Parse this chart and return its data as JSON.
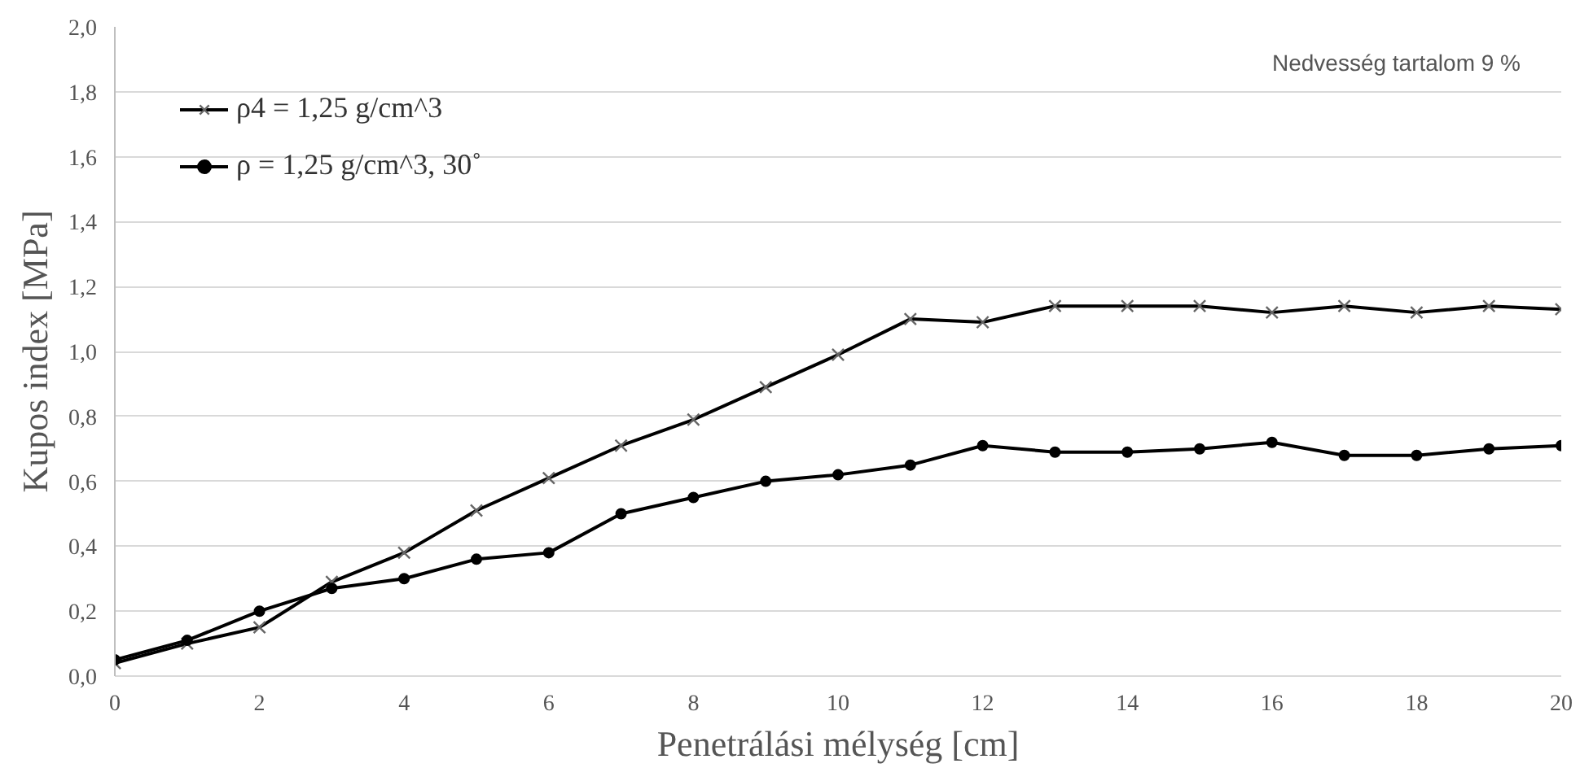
{
  "chart_data": {
    "type": "line",
    "xlabel": "Penetrálási mélység [cm]",
    "ylabel": "Kupos index [MPa]",
    "x": [
      0,
      1,
      2,
      3,
      4,
      5,
      6,
      7,
      8,
      9,
      10,
      11,
      12,
      13,
      14,
      15,
      16,
      17,
      18,
      19,
      20
    ],
    "series": [
      {
        "name": "ρ4 = 1,25 g/cm^3",
        "color": "#000000",
        "marker": "cross",
        "values": [
          0.04,
          0.1,
          0.15,
          0.29,
          0.38,
          0.51,
          0.61,
          0.71,
          0.79,
          0.89,
          0.99,
          1.1,
          1.09,
          1.14,
          1.14,
          1.14,
          1.12,
          1.14,
          1.12,
          1.14,
          1.13
        ]
      },
      {
        "name": "ρ = 1,25 g/cm^3, 30˚",
        "color": "#000000",
        "marker": "circle",
        "values": [
          0.05,
          0.11,
          0.2,
          0.27,
          0.3,
          0.36,
          0.38,
          0.5,
          0.55,
          0.6,
          0.62,
          0.65,
          0.71,
          0.69,
          0.69,
          0.7,
          0.72,
          0.68,
          0.68,
          0.7,
          0.71
        ]
      }
    ],
    "xlim": [
      0,
      20
    ],
    "xticks": [
      0,
      2,
      4,
      6,
      8,
      10,
      12,
      14,
      16,
      18,
      20
    ],
    "ylim": [
      0,
      2
    ],
    "yticks": [
      {
        "value": 0,
        "label": "0,0"
      },
      {
        "value": 0.2,
        "label": "0,2"
      },
      {
        "value": 0.4,
        "label": "0,4"
      },
      {
        "value": 0.6,
        "label": "0,6"
      },
      {
        "value": 0.8,
        "label": "0,8"
      },
      {
        "value": 1.0,
        "label": "1,0"
      },
      {
        "value": 1.2,
        "label": "1,2"
      },
      {
        "value": 1.4,
        "label": "1,4"
      },
      {
        "value": 1.6,
        "label": "1,6"
      },
      {
        "value": 1.8,
        "label": "1,8"
      },
      {
        "value": 2.0,
        "label": "2,0"
      }
    ],
    "grid": "y",
    "legend": "top left",
    "line_style": "solid",
    "annotations": [
      "Nedvesség tartalom 9 %"
    ]
  }
}
